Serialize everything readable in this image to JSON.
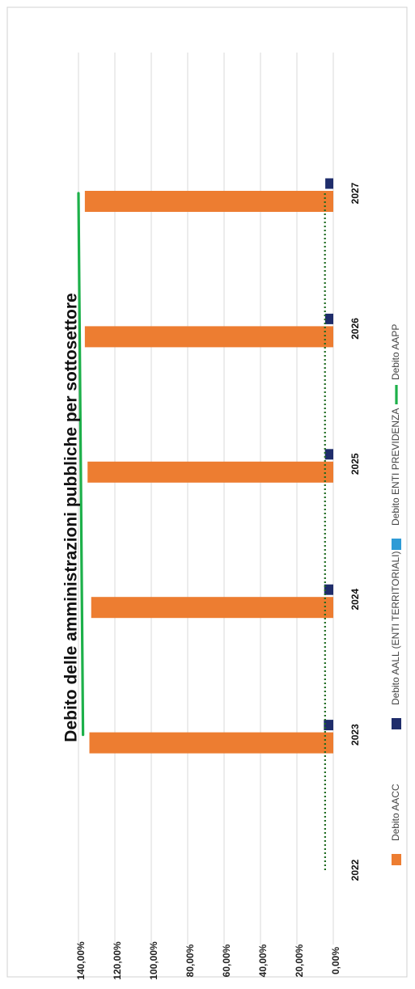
{
  "chart_data": {
    "type": "bar",
    "title": "Debito delle amministrazioni pubbliche per sottosettore",
    "categories": [
      "2022",
      "2023",
      "2024",
      "2025",
      "2026",
      "2027"
    ],
    "y_ticks": [
      "0,00%",
      "20,00%",
      "40,00%",
      "60,00%",
      "80,00%",
      "100,00%",
      "120,00%",
      "140,00%"
    ],
    "ylim": [
      0,
      140
    ],
    "orientation": "rotated",
    "legend_position": "bottom",
    "series": [
      {
        "name": "Debito AACC",
        "kind": "bar",
        "color": "#ED7D31",
        "values": [
          null,
          134,
          133,
          135,
          136.5,
          136.5
        ]
      },
      {
        "name": "Debito AALL (ENTI TERRITORIALI)",
        "kind": "bar",
        "color": "#1F2D6B",
        "values": [
          null,
          5.2,
          5.0,
          4.6,
          4.5,
          4.4
        ]
      },
      {
        "name": "Debito ENTI PREVIDENZA",
        "kind": "bar",
        "color": "#2E9BD6",
        "values": [
          null,
          0,
          0,
          0,
          0,
          0
        ]
      },
      {
        "name": "Debito AAPP",
        "kind": "line",
        "color": "#1DB04A",
        "values": [
          null,
          137.5,
          null,
          null,
          null,
          140
        ]
      },
      {
        "name": "",
        "kind": "dotted-line",
        "color": "#1E6B20",
        "values": [
          4.5,
          null,
          null,
          null,
          null,
          4.6
        ]
      }
    ]
  }
}
